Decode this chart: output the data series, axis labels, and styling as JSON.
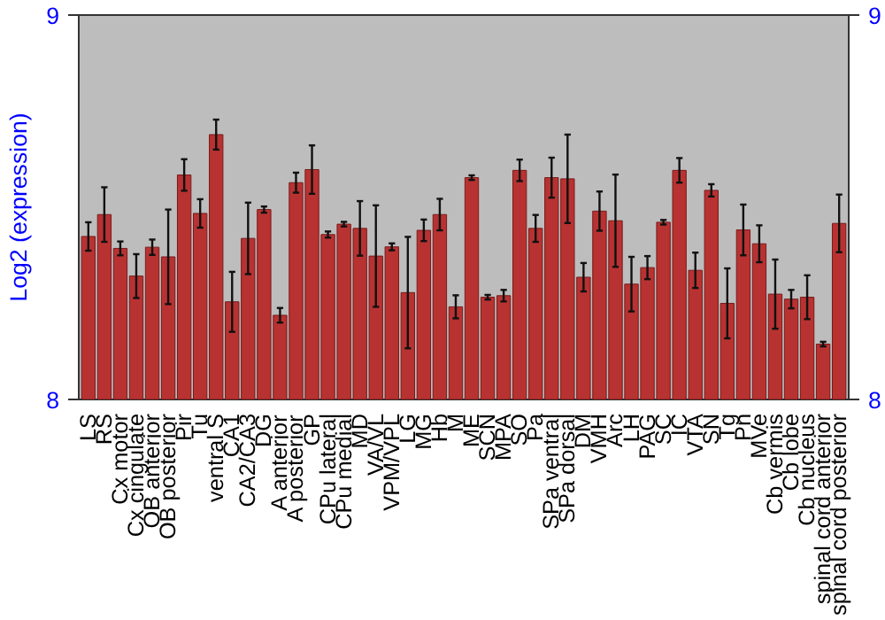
{
  "chart_data": {
    "type": "bar",
    "ylabel": "Log2 (expression)",
    "categories": [
      "LS",
      "RS",
      "Cx motor",
      "Cx cingulate",
      "OB anterior",
      "OB posterior",
      "Pir",
      "Tu",
      "ventral S",
      "CA1",
      "CA2/CA3",
      "DG",
      "A anterior",
      "A posterior",
      "GP",
      "CPu lateral",
      "CPu medial",
      "MD",
      "VA/VL",
      "VPM/VPL",
      "LG",
      "MG",
      "Hb",
      "M",
      "ME",
      "SCN",
      "MPA",
      "SO",
      "Pa",
      "SPa ventral",
      "SPa dorsal",
      "DM",
      "VMH",
      "Arc",
      "LH",
      "PAG",
      "SC",
      "IC",
      "VTA",
      "SN",
      "Tg",
      "Pn",
      "MVe",
      "Cb vermis",
      "Cb lobe",
      "Cb nucleus",
      "spinal cord anterior",
      "spinal cord posterior"
    ],
    "values": [
      8.424,
      8.481,
      8.393,
      8.321,
      8.396,
      8.371,
      8.584,
      8.484,
      8.689,
      8.254,
      8.419,
      8.494,
      8.219,
      8.564,
      8.598,
      8.429,
      8.456,
      8.445,
      8.373,
      8.397,
      8.278,
      8.44,
      8.481,
      8.241,
      8.577,
      8.266,
      8.27,
      8.596,
      8.445,
      8.577,
      8.574,
      8.318,
      8.49,
      8.465,
      8.3,
      8.343,
      8.461,
      8.596,
      8.336,
      8.544,
      8.25,
      8.441,
      8.405,
      8.274,
      8.261,
      8.266,
      8.144,
      8.458
    ],
    "errors": [
      0.037,
      0.071,
      0.018,
      0.057,
      0.02,
      0.123,
      0.041,
      0.037,
      0.039,
      0.078,
      0.093,
      0.008,
      0.019,
      0.026,
      0.063,
      0.008,
      0.006,
      0.071,
      0.132,
      0.009,
      0.145,
      0.028,
      0.041,
      0.03,
      0.006,
      0.006,
      0.015,
      0.028,
      0.035,
      0.052,
      0.115,
      0.037,
      0.051,
      0.12,
      0.071,
      0.03,
      0.006,
      0.032,
      0.046,
      0.016,
      0.091,
      0.066,
      0.048,
      0.09,
      0.024,
      0.057,
      0.006,
      0.075
    ],
    "color": "#b83232",
    "ylim": [
      8,
      9
    ],
    "yticks": [
      8,
      9
    ],
    "y2lim": [
      8,
      9
    ],
    "y2ticks": [
      8,
      9
    ]
  }
}
